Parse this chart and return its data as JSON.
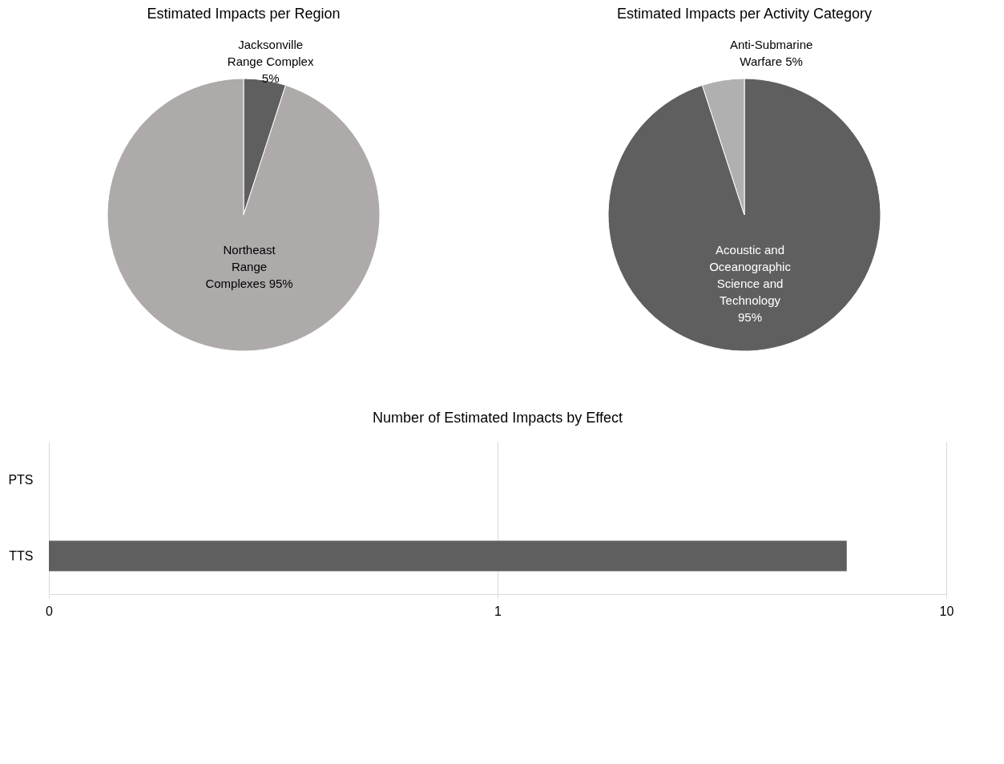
{
  "chart_data": [
    {
      "type": "pie",
      "title": "Estimated Impacts per Region",
      "categories": [
        "Jacksonville Range Complex",
        "Northeast Range Complexes"
      ],
      "values": [
        5,
        95
      ],
      "colors": [
        "#5f5f5f",
        "#aeaaaa"
      ],
      "value_labels": [
        "5%",
        "95%"
      ]
    },
    {
      "type": "pie",
      "title": "Estimated Impacts per Activity Category",
      "categories": [
        "Acoustic and Oceanographic Science and Technology",
        "Anti-Submarine Warfare"
      ],
      "values": [
        95,
        5
      ],
      "colors": [
        "#5f5f5f",
        "#b0b0b0"
      ],
      "value_labels": [
        "95%",
        "5%"
      ]
    },
    {
      "type": "bar",
      "title": "Number of Estimated Impacts by Effect",
      "orientation": "horizontal",
      "categories": [
        "PTS",
        "TTS"
      ],
      "values": [
        null,
        6
      ],
      "color": "#5f5f5f",
      "log": "x",
      "xlim": [
        0.1,
        10
      ],
      "xticks": [
        {
          "value": 0.1,
          "label": "0"
        },
        1,
        10
      ],
      "grid": "x"
    }
  ]
}
